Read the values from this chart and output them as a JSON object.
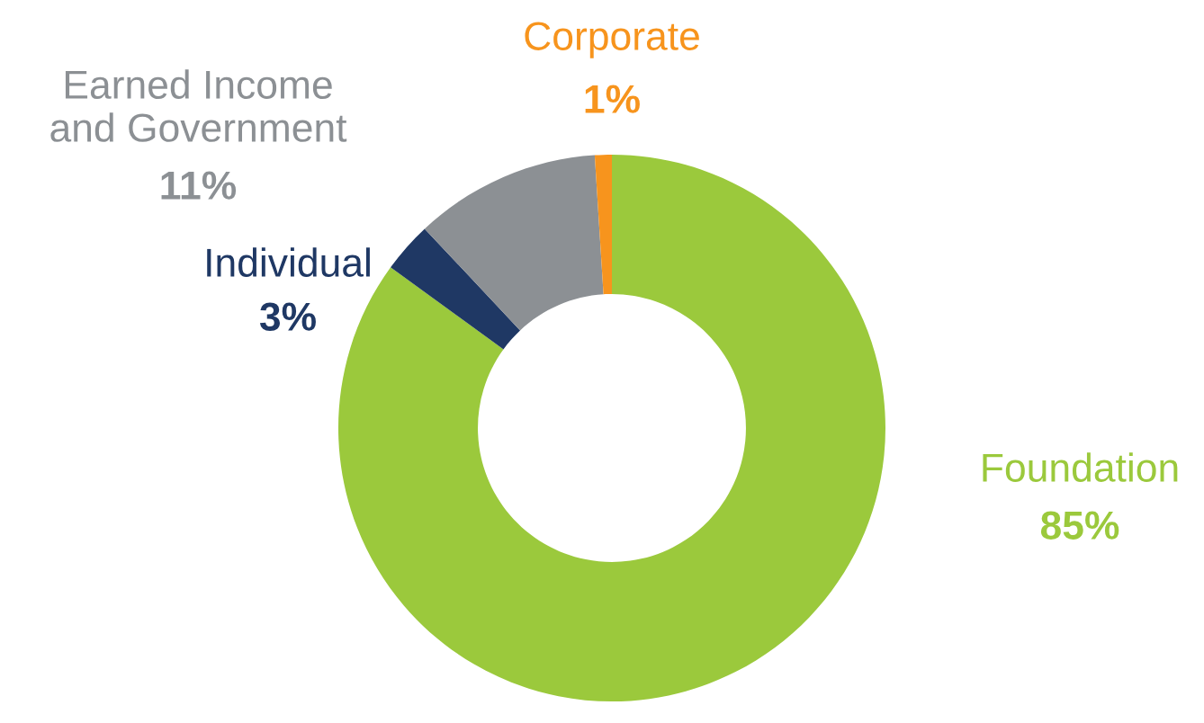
{
  "chart_data": {
    "type": "donut",
    "categories": [
      "Foundation",
      "Individual",
      "Earned Income\nand Government",
      "Corporate"
    ],
    "values": [
      85,
      3,
      11,
      1
    ],
    "colors": [
      "#9bc93c",
      "#1f3864",
      "#8c9094",
      "#f7941d"
    ],
    "value_labels": [
      "85%",
      "3%",
      "11%",
      "1%"
    ],
    "legend": false
  }
}
